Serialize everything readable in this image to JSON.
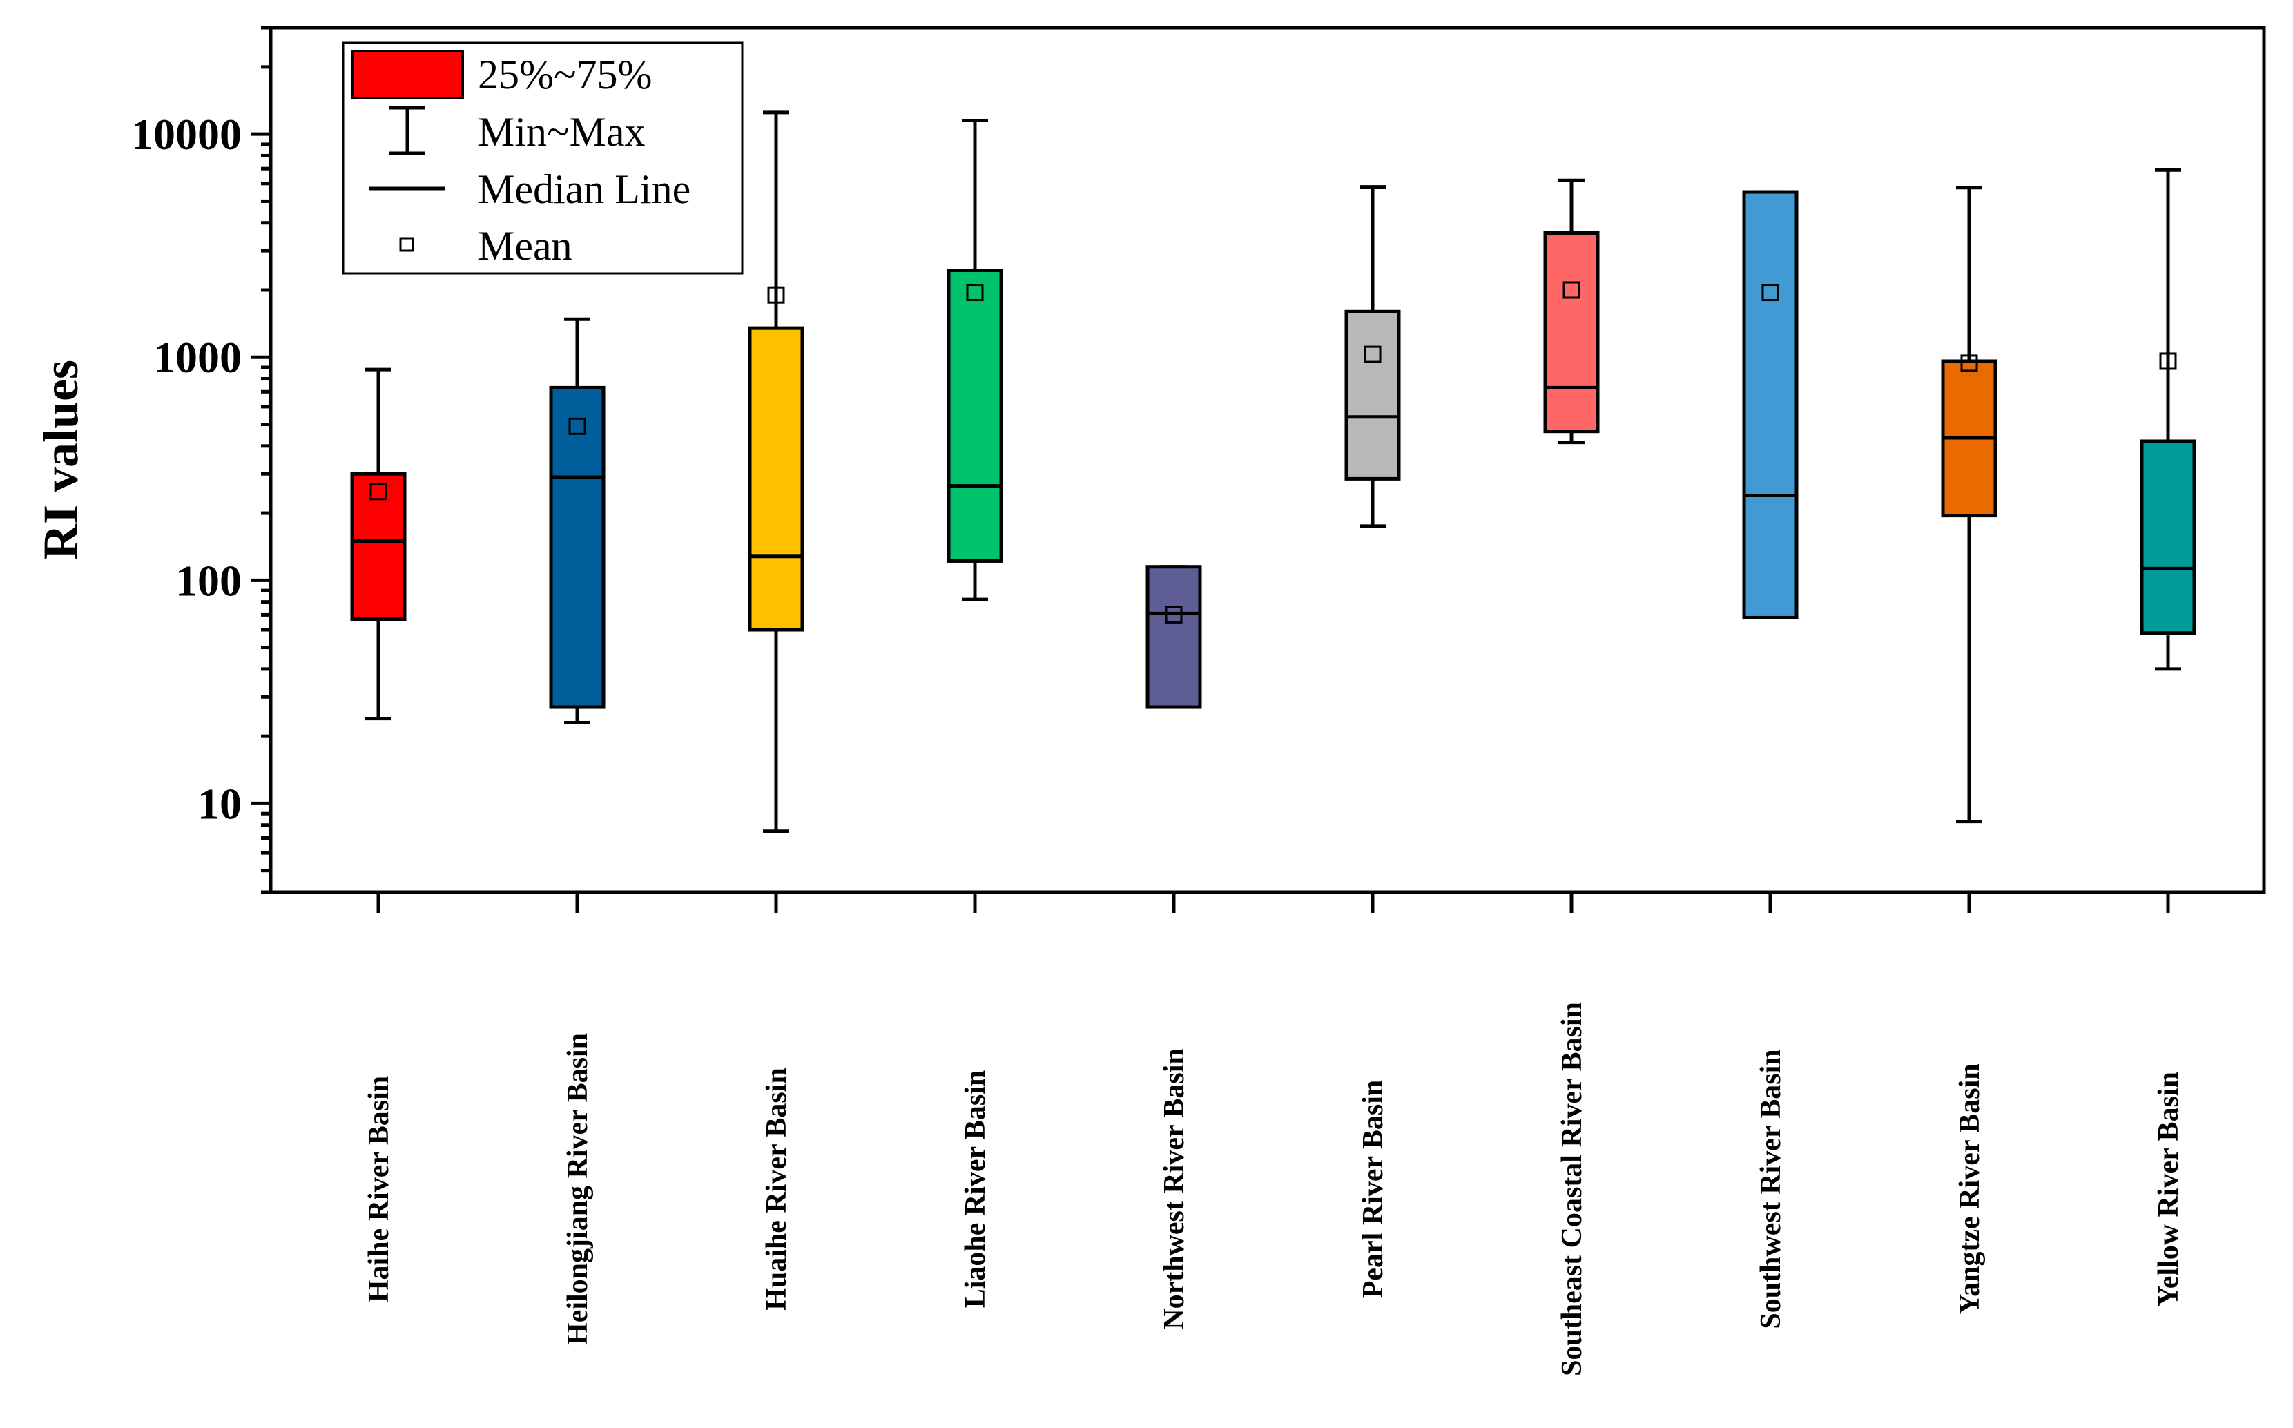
{
  "chart_data": {
    "type": "boxplot",
    "title": "",
    "xlabel": "",
    "ylabel": "RI values",
    "yscale": "log",
    "ylim": [
      4,
      30000
    ],
    "yticks": [
      10,
      100,
      1000,
      10000
    ],
    "ytick_labels": [
      "10",
      "100",
      "1000",
      "10000"
    ],
    "legend_position": "top-left",
    "legend": {
      "box": "25%~75%",
      "whisker": "Min~Max",
      "median": "Median Line",
      "mean": "Mean"
    },
    "categories": [
      "Haihe River Basin",
      "Heilongjiang River Basin",
      "Huaihe River Basin",
      "Liaohe River Basin",
      "Northwest River Basin",
      "Pearl River Basin",
      "Southeast Coastal River Basin",
      "Southwest River Basin",
      "Yangtze River Basin",
      "Yellow River Basin"
    ],
    "series": [
      {
        "name": "Haihe River Basin",
        "min": 24,
        "q1": 67,
        "median": 150,
        "q3": 300,
        "max": 880,
        "mean": 250,
        "color": "#ff0000"
      },
      {
        "name": "Heilongjiang River Basin",
        "min": 23,
        "q1": 27,
        "median": 290,
        "q3": 730,
        "max": 1480,
        "mean": 490,
        "color": "#005f9a"
      },
      {
        "name": "Huaihe River Basin",
        "min": 7.5,
        "q1": 60,
        "median": 128,
        "q3": 1350,
        "max": 12500,
        "mean": 1900,
        "color": "#ffc000"
      },
      {
        "name": "Liaohe River Basin",
        "min": 82,
        "q1": 122,
        "median": 265,
        "q3": 2450,
        "max": 11500,
        "mean": 1950,
        "color": "#00c26b"
      },
      {
        "name": "Northwest River Basin",
        "min": 27,
        "q1": 27,
        "median": 71,
        "q3": 115,
        "max": 115,
        "mean": 70,
        "color": "#5e5e94"
      },
      {
        "name": "Pearl River Basin",
        "min": 175,
        "q1": 285,
        "median": 540,
        "q3": 1600,
        "max": 5800,
        "mean": 1030,
        "color": "#b8b8b8"
      },
      {
        "name": "Southeast Coastal River Basin",
        "min": 415,
        "q1": 465,
        "median": 730,
        "q3": 3600,
        "max": 6200,
        "mean": 2000,
        "color": "#ff6666"
      },
      {
        "name": "Southwest River Basin",
        "min": 68,
        "q1": 68,
        "median": 240,
        "q3": 5500,
        "max": 5500,
        "mean": 1950,
        "color": "#419ad4"
      },
      {
        "name": "Yangtze River Basin",
        "min": 8.3,
        "q1": 195,
        "median": 435,
        "q3": 960,
        "max": 5750,
        "mean": 940,
        "color": "#e86a00"
      },
      {
        "name": "Yellow River Basin",
        "min": 40,
        "q1": 58,
        "median": 113,
        "q3": 420,
        "max": 6900,
        "mean": 960,
        "color": "#009b9b"
      }
    ]
  }
}
